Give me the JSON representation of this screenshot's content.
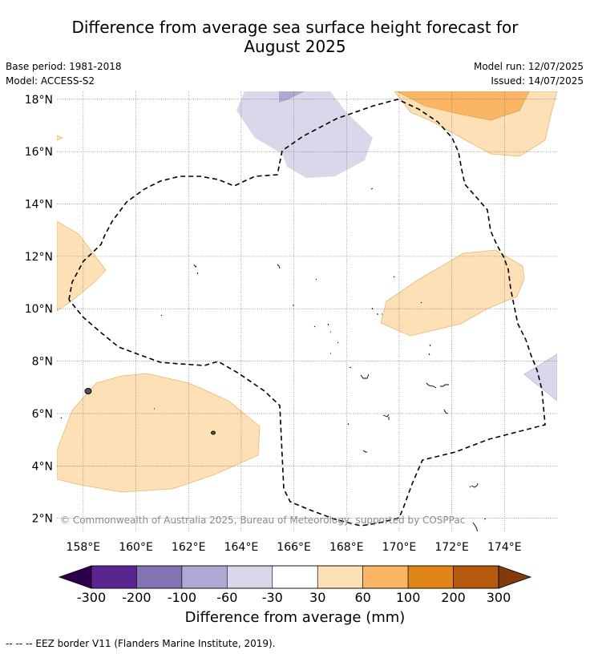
{
  "title_line1": "Difference from average sea surface height forecast for",
  "title_line2": "August 2025",
  "meta": {
    "base_period": "Base period: 1981-2018",
    "model": "Model: ACCESS-S2",
    "model_run": "Model run: 12/07/2025",
    "issued": "Issued: 14/07/2025"
  },
  "map": {
    "lon_range": [
      157,
      176
    ],
    "lat_range": [
      1.5,
      18.3
    ],
    "lon_ticks": [
      "158°E",
      "160°E",
      "162°E",
      "164°E",
      "166°E",
      "168°E",
      "170°E",
      "172°E",
      "174°E"
    ],
    "lat_ticks": [
      "18°N",
      "16°N",
      "14°N",
      "12°N",
      "10°N",
      "8°N",
      "6°N",
      "4°N",
      "2°N"
    ],
    "copyright": "© Commonwealth of Australia 2025, Bureau of Meteorology, supported by COSPPac"
  },
  "colorbar": {
    "colors": [
      "#5a2590",
      "#8373b0",
      "#b0a8d2",
      "#d8d8ea",
      "#ffffff",
      "#fde0b5",
      "#fab665",
      "#e08518",
      "#b55a0c"
    ],
    "extend_low_color": "#2d004b",
    "extend_high_color": "#7f3b08",
    "tick_labels": [
      "-300",
      "-200",
      "-100",
      "-60",
      "-30",
      "30",
      "60",
      "100",
      "200",
      "300"
    ],
    "label": "Difference from average (mm)"
  },
  "footer": "--  --  -- EEZ border V11 (Flanders Marine Institute, 2019)."
}
